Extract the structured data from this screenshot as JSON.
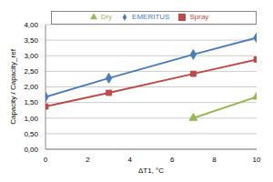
{
  "chart_data": {
    "type": "line",
    "x": [
      0,
      3,
      7,
      10
    ],
    "series": [
      {
        "name": "EMERITUS",
        "color": "#4a7ebb",
        "marker": "diamond",
        "values": [
          1.68,
          2.28,
          3.04,
          3.58
        ]
      },
      {
        "name": "Spray",
        "color": "#be4b48",
        "marker": "square",
        "values": [
          1.37,
          1.81,
          2.42,
          2.88
        ]
      },
      {
        "name": "Dry",
        "color": "#98b954",
        "marker": "triangle",
        "values": [
          null,
          null,
          1.0,
          1.68
        ]
      }
    ],
    "xlabel": "ΔT1, °C",
    "ylabel": "Capacity / Capacity_ref",
    "xlim": [
      0,
      10
    ],
    "xticks": [
      0,
      2,
      4,
      6,
      8,
      10
    ],
    "ylim": [
      0,
      4
    ],
    "yticks": [
      {
        "value": 0,
        "label": "0,00"
      },
      {
        "value": 0.5,
        "label": "0,50"
      },
      {
        "value": 1,
        "label": "1,00"
      },
      {
        "value": 1.5,
        "label": "1,50"
      },
      {
        "value": 2,
        "label": "2,00"
      },
      {
        "value": 2.5,
        "label": "2,50"
      },
      {
        "value": 3,
        "label": "3,00"
      },
      {
        "value": 3.5,
        "label": "3,50"
      },
      {
        "value": 4,
        "label": "4,00"
      }
    ],
    "grid": true,
    "legend": "top"
  }
}
